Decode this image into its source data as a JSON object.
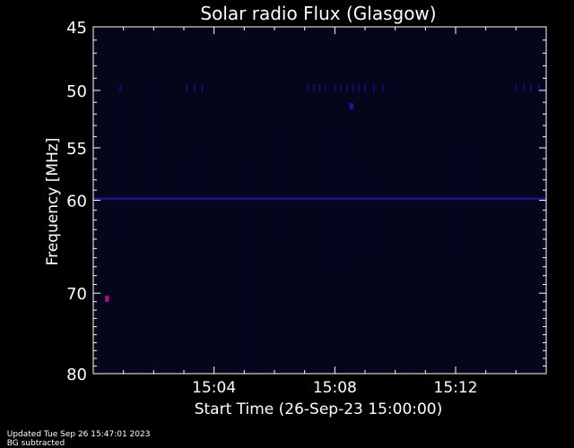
{
  "chart_data": {
    "type": "heatmap",
    "title": "Solar radio Flux (Glasgow)",
    "xlabel": "Start Time (26-Sep-23 15:00:00)",
    "ylabel": "Frequency [MHz]",
    "x_unit": "minutes after start",
    "xlim": [
      0,
      15
    ],
    "x_tick_values": [
      4,
      8,
      12
    ],
    "x_tick_labels": [
      "15:04",
      "15:08",
      "15:12"
    ],
    "ylim": [
      45,
      80
    ],
    "y_scale": "log",
    "y_inverted": true,
    "y_tick_values": [
      45,
      50,
      55,
      60,
      70,
      80
    ],
    "y_tick_labels": [
      "45",
      "50",
      "55",
      "60",
      "70",
      "80"
    ],
    "background_color": "#05051c",
    "colormap": [
      "#05051c",
      "#101070",
      "#1a1aa8",
      "#6a10b0",
      "#b0108a"
    ],
    "features": [
      {
        "kind": "horizontal_band",
        "frequency": 59.8,
        "intensity": 0.55,
        "t_start": 0.0,
        "t_end": 15.0
      },
      {
        "kind": "point",
        "time": 0.45,
        "frequency": 70.6,
        "intensity": 1.0
      },
      {
        "kind": "point",
        "time": 8.55,
        "frequency": 51.3,
        "intensity": 0.55
      },
      {
        "kind": "dash_row",
        "frequency": 49.8,
        "intensity": 0.35,
        "times": [
          0.9,
          3.1,
          3.35,
          3.6,
          7.1,
          7.3,
          7.5,
          7.7,
          8.0,
          8.2,
          8.4,
          8.6,
          8.8,
          9.0,
          9.3,
          9.6,
          14.0,
          14.25,
          14.5,
          14.75
        ]
      }
    ]
  },
  "footer": {
    "updated": "Updated Tue Sep 26 15:47:01 2023",
    "note": "BG subtracted"
  }
}
